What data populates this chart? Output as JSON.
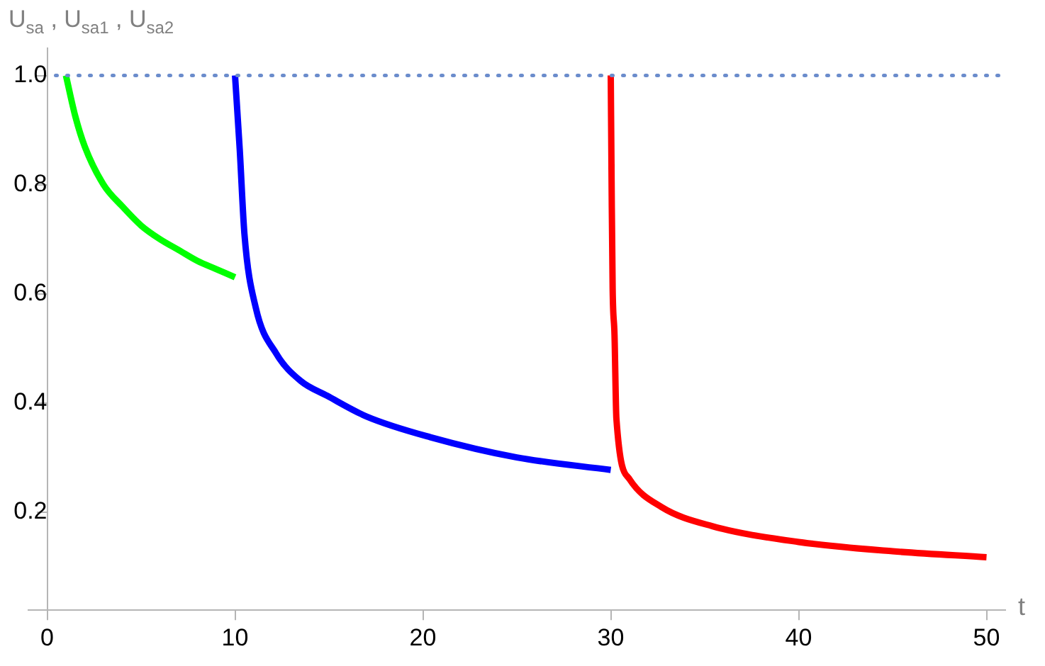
{
  "chart_data": {
    "type": "line",
    "xlabel": "t",
    "ylabel": "U$_{sa}$ , U$_{sa1}$ , U$_{sa2}$",
    "xlim": [
      -1,
      51
    ],
    "xticks": [
      0,
      10,
      20,
      30,
      40,
      50
    ],
    "ylim": [
      0.02,
      1.05
    ],
    "yticks": [
      {
        "value": 0.2,
        "label": "0.2"
      },
      {
        "value": 0.4,
        "label": "0.4"
      },
      {
        "value": 0.6,
        "label": "0.6"
      },
      {
        "value": 0.8,
        "label": "0.8"
      },
      {
        "value": 1,
        "label": "1.0"
      }
    ],
    "grid": false,
    "ref_lines": [
      {
        "axis": "y",
        "value": 1.0,
        "color": "#6b8ccc",
        "line_style": "dotted"
      }
    ],
    "series": [
      {
        "color": "#00ff00",
        "x": [
          1,
          1.5,
          2,
          3,
          4,
          5,
          6,
          7,
          8,
          9,
          10
        ],
        "values": [
          1,
          0.925,
          0.87,
          0.8,
          0.76,
          0.725,
          0.7,
          0.68,
          0.66,
          0.645,
          0.63
        ]
      },
      {
        "color": "#0000ff",
        "x": [
          10,
          10.25,
          10.5,
          11.1,
          12.2,
          13.5,
          14.9,
          17,
          20.4,
          25,
          30
        ],
        "values": [
          1,
          0.865,
          0.71,
          0.575,
          0.49,
          0.44,
          0.413,
          0.375,
          0.337,
          0.3,
          0.277
        ]
      },
      {
        "color": "#ff0000",
        "x": [
          30,
          30.05,
          30.1,
          30.2,
          30.3,
          31,
          32.7,
          35.4,
          40,
          45,
          50
        ],
        "values": [
          1,
          0.78,
          0.61,
          0.524,
          0.371,
          0.26,
          0.209,
          0.174,
          0.145,
          0.128,
          0.117
        ]
      }
    ]
  }
}
